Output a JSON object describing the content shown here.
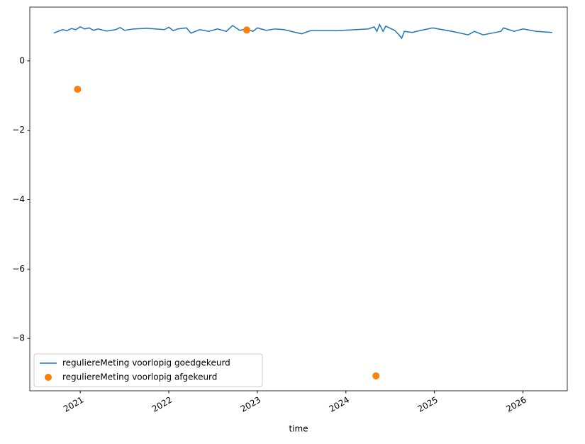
{
  "chart_data": {
    "type": "line",
    "xlabel": "time",
    "xlim": [
      2020.43,
      2026.5
    ],
    "xticks": [
      2021,
      2022,
      2023,
      2024,
      2025,
      2026
    ],
    "ylim": [
      -9.51,
      1.55
    ],
    "yticks": [
      {
        "value": -8,
        "label": "−8"
      },
      {
        "value": -6,
        "label": "−6"
      },
      {
        "value": -4,
        "label": "−4"
      },
      {
        "value": -2,
        "label": "−2"
      },
      0
    ],
    "legend": "lower left",
    "series": [
      {
        "name": "reguliereMeting voorlopig goedgekeurd",
        "type": "line",
        "color": "#1f77b4",
        "x": [
          2020.7,
          2020.75,
          2020.8,
          2020.85,
          2020.9,
          2020.95,
          2021.0,
          2021.05,
          2021.1,
          2021.15,
          2021.2,
          2021.3,
          2021.4,
          2021.45,
          2021.5,
          2021.6,
          2021.75,
          2021.95,
          2022.0,
          2022.05,
          2022.1,
          2022.2,
          2022.25,
          2022.35,
          2022.45,
          2022.55,
          2022.65,
          2022.72,
          2022.8,
          2022.88,
          2022.95,
          2023.0,
          2023.1,
          2023.2,
          2023.3,
          2023.5,
          2023.6,
          2023.9,
          2024.25,
          2024.32,
          2024.35,
          2024.38,
          2024.42,
          2024.45,
          2024.55,
          2024.6,
          2024.63,
          2024.66,
          2024.75,
          2024.85,
          2024.98,
          2025.2,
          2025.38,
          2025.45,
          2025.55,
          2025.65,
          2025.75,
          2025.78,
          2025.9,
          2026.0,
          2026.15,
          2026.33
        ],
        "values": [
          0.8,
          0.85,
          0.9,
          0.87,
          0.93,
          0.9,
          0.98,
          0.92,
          0.95,
          0.88,
          0.92,
          0.86,
          0.9,
          0.96,
          0.88,
          0.92,
          0.94,
          0.9,
          0.97,
          0.87,
          0.92,
          0.95,
          0.8,
          0.9,
          0.85,
          0.92,
          0.85,
          1.02,
          0.88,
          0.92,
          0.85,
          0.95,
          0.88,
          0.92,
          0.9,
          0.78,
          0.87,
          0.87,
          0.92,
          0.98,
          0.85,
          1.05,
          0.85,
          1.0,
          0.88,
          0.75,
          0.65,
          0.85,
          0.82,
          0.88,
          0.95,
          0.85,
          0.75,
          0.85,
          0.75,
          0.8,
          0.85,
          0.95,
          0.85,
          0.92,
          0.85,
          0.82
        ]
      },
      {
        "name": "reguliereMeting voorlopig afgekeurd",
        "type": "scatter",
        "color": "#ff7f0e",
        "x": [
          2020.97,
          2022.88,
          2024.34
        ],
        "values": [
          -0.82,
          0.89,
          -9.08
        ]
      }
    ]
  }
}
